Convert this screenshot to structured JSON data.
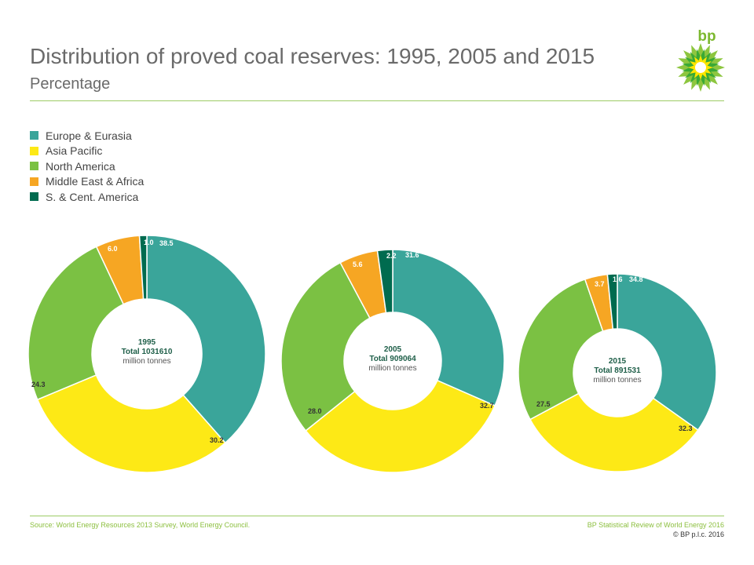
{
  "header": {
    "title": "Distribution of proved coal reserves: 1995, 2005 and 2015",
    "subtitle": "Percentage"
  },
  "logo": {
    "text": "bp",
    "icon": "bp-helios-icon",
    "colors": {
      "text": "#7cb82f",
      "outer": "#8dc63f",
      "middle": "#3aa935",
      "inner": "#ffe600",
      "center": "#ffffff"
    }
  },
  "colors": {
    "europe_eurasia": "#3aa59a",
    "asia_pacific": "#fde916",
    "north_america": "#7bc143",
    "middle_east_africa": "#f6a623",
    "sc_america": "#006b4f",
    "rule": "#9ccc65"
  },
  "chart_data": [
    {
      "type": "pie",
      "donut": true,
      "center_label": [
        "1995",
        "Total 1031610",
        "million tonnes"
      ],
      "categories": [
        "Europe & Eurasia",
        "Asia Pacific",
        "North America",
        "Middle East & Africa",
        "S. & Cent. America"
      ],
      "values": [
        38.5,
        30.2,
        24.3,
        6.0,
        1.0
      ],
      "value_labels": [
        "38.5",
        "30.2",
        "24.3",
        "6.0",
        "1.0"
      ]
    },
    {
      "type": "pie",
      "donut": true,
      "center_label": [
        "2005",
        "Total 909064",
        "million tonnes"
      ],
      "categories": [
        "Europe & Eurasia",
        "Asia Pacific",
        "North America",
        "Middle East & Africa",
        "S. & Cent. America"
      ],
      "values": [
        31.6,
        32.7,
        28.0,
        5.6,
        2.2
      ],
      "value_labels": [
        "31.6",
        "32.7",
        "28.0",
        "5.6",
        "2.2"
      ]
    },
    {
      "type": "pie",
      "donut": true,
      "center_label": [
        "2015",
        "Total 891531",
        "million tonnes"
      ],
      "categories": [
        "Europe & Eurasia",
        "Asia Pacific",
        "North America",
        "Middle East & Africa",
        "S. & Cent. America"
      ],
      "values": [
        34.8,
        32.3,
        27.5,
        3.7,
        1.6
      ],
      "value_labels": [
        "34.8",
        "32.3",
        "27.5",
        "3.7",
        "1.6"
      ]
    }
  ],
  "legend": {
    "items": [
      {
        "label": "Europe & Eurasia",
        "color": "#3aa59a"
      },
      {
        "label": "Asia Pacific",
        "color": "#fde916"
      },
      {
        "label": "North America",
        "color": "#7bc143"
      },
      {
        "label": "Middle East & Africa",
        "color": "#f6a623"
      },
      {
        "label": "S. & Cent. America",
        "color": "#006b4f"
      }
    ]
  },
  "footer": {
    "source": "Source: World Energy Resources 2013 Survey, World Energy Council.",
    "review": "BP Statistical Review of World Energy 2016",
    "copyright": "© BP p.l.c. 2016"
  }
}
